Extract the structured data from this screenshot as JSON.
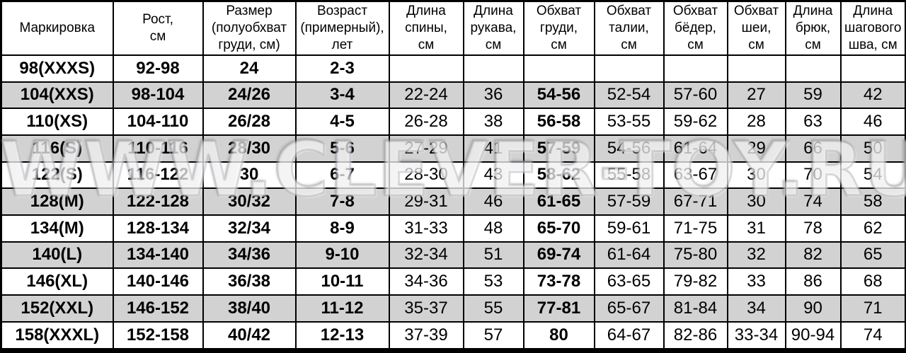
{
  "watermark_text": "WWW.CLEVER-TOY.RU",
  "colors": {
    "row_alt_gray": "#d2d2d2",
    "row_white": "#ffffff",
    "border_black": "#000000",
    "watermark_gray": "#878c96"
  },
  "table": {
    "columns": [
      "Маркировка",
      "Рост,\nсм",
      "Размер\n(полуобхват\nгруди, см)",
      "Возраст\n(примерный),\nлет",
      "Длина\nспины,\nсм",
      "Длина\nрукава,\nсм",
      "Обхват\nгруди,\nсм",
      "Обхват\nталии,\nсм",
      "Обхват\nбёдер,\nсм",
      "Обхват\nшеи,\nсм",
      "Длина\nбрюк,\nсм",
      "Длина\nшагового\nшва, см"
    ],
    "rows": [
      {
        "cells": [
          "98(XXXS)",
          "92-98",
          "24",
          "2-3",
          "",
          "",
          "",
          "",
          "",
          "",
          "",
          ""
        ]
      },
      {
        "cells": [
          "104(XXS)",
          "98-104",
          "24/26",
          "3-4",
          "22-24",
          "36",
          "54-56",
          "52-54",
          "57-60",
          "27",
          "59",
          "42"
        ]
      },
      {
        "cells": [
          "110(XS)",
          "104-110",
          "26/28",
          "4-5",
          "26-28",
          "38",
          "56-58",
          "53-55",
          "59-62",
          "28",
          "63",
          "46"
        ]
      },
      {
        "cells": [
          "116(S)",
          "110-116",
          "28/30",
          "5-6",
          "27-29",
          "41",
          "57-59",
          "54-56",
          "61-64",
          "29",
          "66",
          "50"
        ]
      },
      {
        "cells": [
          "122(S)",
          "116-122",
          "30",
          "6-7",
          "28-30",
          "43",
          "58-62",
          "55-58",
          "63-67",
          "30",
          "70",
          "54"
        ]
      },
      {
        "cells": [
          "128(M)",
          "122-128",
          "30/32",
          "7-8",
          "29-31",
          "46",
          "61-65",
          "57-59",
          "67-71",
          "30",
          "74",
          "58"
        ]
      },
      {
        "cells": [
          "134(M)",
          "128-134",
          "32/34",
          "8-9",
          "31-33",
          "48",
          "65-70",
          "59-61",
          "71-75",
          "31",
          "78",
          "62"
        ]
      },
      {
        "cells": [
          "140(L)",
          "134-140",
          "34/36",
          "9-10",
          "32-34",
          "51",
          "69-74",
          "61-64",
          "75-80",
          "32",
          "82",
          "65"
        ]
      },
      {
        "cells": [
          "146(XL)",
          "140-146",
          "36/38",
          "10-11",
          "34-36",
          "53",
          "73-78",
          "63-65",
          "79-82",
          "33",
          "86",
          "68"
        ]
      },
      {
        "cells": [
          "152(XXL)",
          "146-152",
          "38/40",
          "11-12",
          "35-37",
          "55",
          "77-81",
          "65-67",
          "81-84",
          "34",
          "90",
          "71"
        ]
      },
      {
        "cells": [
          "158(XXXL)",
          "152-158",
          "40/42",
          "12-13",
          "37-39",
          "57",
          "80",
          "64-67",
          "82-86",
          "33-34",
          "90-94",
          "74"
        ]
      }
    ]
  }
}
